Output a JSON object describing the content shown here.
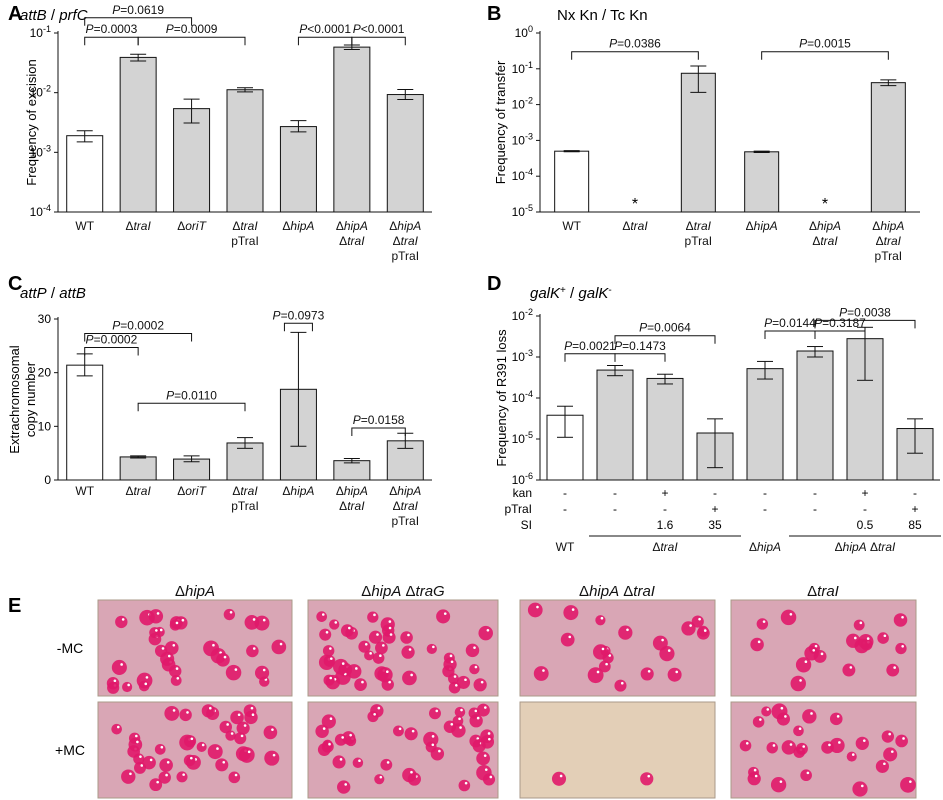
{
  "panels": [
    {
      "letter": "A",
      "title": [
        "attB",
        " / ",
        "prfC"
      ],
      "title_italic": [
        true,
        false,
        true
      ],
      "chart_data": {
        "type": "bar",
        "yscale": "log",
        "ylim": [
          0.0001,
          0.1
        ],
        "ylabel": "Frequency of excision",
        "yticks": [
          {
            "v": 0.1,
            "b": "10",
            "e": "-1"
          },
          {
            "v": 0.01,
            "b": "10",
            "e": "-2"
          },
          {
            "v": 0.001,
            "b": "10",
            "e": "-3"
          },
          {
            "v": 0.0001,
            "b": "10",
            "e": "-4"
          }
        ],
        "categories": [
          [
            [
              {
                "t": "WT",
                "i": false
              }
            ]
          ],
          [
            [
              {
                "t": "Δ",
                "i": false
              },
              {
                "t": "traI",
                "i": true
              }
            ]
          ],
          [
            [
              {
                "t": "Δ",
                "i": false
              },
              {
                "t": "oriT",
                "i": true
              }
            ]
          ],
          [
            [
              {
                "t": "Δ",
                "i": false
              },
              {
                "t": "traI",
                "i": true
              }
            ],
            [
              {
                "t": "pTraI",
                "i": false
              }
            ]
          ],
          [
            [
              {
                "t": "Δ",
                "i": false
              },
              {
                "t": "hipA",
                "i": true
              }
            ]
          ],
          [
            [
              {
                "t": "Δ",
                "i": false
              },
              {
                "t": "hipA",
                "i": true
              }
            ],
            [
              {
                "t": "Δ",
                "i": false
              },
              {
                "t": "traI",
                "i": true
              }
            ]
          ],
          [
            [
              {
                "t": "Δ",
                "i": false
              },
              {
                "t": "hipA",
                "i": true
              }
            ],
            [
              {
                "t": "Δ",
                "i": false
              },
              {
                "t": "traI",
                "i": true
              }
            ],
            [
              {
                "t": "pTraI",
                "i": false
              }
            ]
          ]
        ],
        "values": [
          0.0019,
          0.039,
          0.0054,
          0.0112,
          0.0027,
          0.058,
          0.0093
        ],
        "err_low": [
          0.0015,
          0.034,
          0.0031,
          0.0103,
          0.0022,
          0.053,
          0.0077
        ],
        "err_high": [
          0.0023,
          0.044,
          0.0078,
          0.0121,
          0.0034,
          0.063,
          0.0113
        ],
        "fills": [
          "#ffffff",
          "#d3d3d3",
          "#d3d3d3",
          "#d3d3d3",
          "#d3d3d3",
          "#d3d3d3",
          "#d3d3d3"
        ],
        "brackets": [
          {
            "from": 0,
            "to": 2,
            "value": 0.18,
            "p": "=0.0619"
          },
          {
            "from": 0,
            "to": 1,
            "value": 0.085,
            "p": "=0.0003"
          },
          {
            "from": 1,
            "to": 3,
            "value": 0.085,
            "p": "=0.0009"
          },
          {
            "from": 4,
            "to": 5,
            "value": 0.085,
            "p": "<0.0001"
          },
          {
            "from": 5,
            "to": 6,
            "value": 0.085,
            "p": "<0.0001"
          }
        ]
      }
    },
    {
      "letter": "B",
      "title": [
        "Nx Kn / Tc Kn"
      ],
      "title_italic": [
        false
      ],
      "chart_data": {
        "type": "bar",
        "yscale": "log",
        "ylim": [
          1e-05,
          1
        ],
        "ylabel": "Frequency of transfer",
        "yticks": [
          {
            "v": 1,
            "b": "10",
            "e": "0"
          },
          {
            "v": 0.1,
            "b": "10",
            "e": "-1"
          },
          {
            "v": 0.01,
            "b": "10",
            "e": "-2"
          },
          {
            "v": 0.001,
            "b": "10",
            "e": "-3"
          },
          {
            "v": 0.0001,
            "b": "10",
            "e": "-4"
          },
          {
            "v": 1e-05,
            "b": "10",
            "e": "-5"
          }
        ],
        "categories": [
          [
            [
              {
                "t": "WT",
                "i": false
              }
            ]
          ],
          [
            [
              {
                "t": "Δ",
                "i": false
              },
              {
                "t": "traI",
                "i": true
              }
            ]
          ],
          [
            [
              {
                "t": "Δ",
                "i": false
              },
              {
                "t": "traI",
                "i": true
              }
            ],
            [
              {
                "t": "pTraI",
                "i": false
              }
            ]
          ],
          [
            [
              {
                "t": "Δ",
                "i": false
              },
              {
                "t": "hipA",
                "i": true
              }
            ]
          ],
          [
            [
              {
                "t": "Δ",
                "i": false
              },
              {
                "t": "hipA",
                "i": true
              }
            ],
            [
              {
                "t": "Δ",
                "i": false
              },
              {
                "t": "traI",
                "i": true
              }
            ]
          ],
          [
            [
              {
                "t": "Δ",
                "i": false
              },
              {
                "t": "hipA",
                "i": true
              }
            ],
            [
              {
                "t": "Δ",
                "i": false
              },
              {
                "t": "traI",
                "i": true
              }
            ],
            [
              {
                "t": "pTraI",
                "i": false
              }
            ]
          ]
        ],
        "values": [
          0.0005,
          null,
          0.075,
          0.00048,
          null,
          0.041
        ],
        "err_low": [
          0.00048,
          null,
          0.022,
          0.00046,
          null,
          0.034
        ],
        "err_high": [
          0.00052,
          null,
          0.12,
          0.0005,
          null,
          0.049
        ],
        "fills": [
          "#ffffff",
          "#d3d3d3",
          "#d3d3d3",
          "#d3d3d3",
          "#d3d3d3",
          "#d3d3d3"
        ],
        "markers": [
          {
            "index": 1,
            "text": "*"
          },
          {
            "index": 4,
            "text": "*"
          }
        ],
        "brackets": [
          {
            "from": 0,
            "to": 2,
            "value": 0.3,
            "p": "=0.0386"
          },
          {
            "from": 3,
            "to": 5,
            "value": 0.3,
            "p": "=0.0015"
          }
        ]
      }
    },
    {
      "letter": "C",
      "title": [
        "attP",
        " / ",
        "attB"
      ],
      "title_italic": [
        true,
        false,
        true
      ],
      "chart_data": {
        "type": "bar",
        "yscale": "linear",
        "ylim": [
          0,
          30
        ],
        "ylabel": "Extrachromosomal copy number",
        "yticks": [
          {
            "v": 0,
            "t": "0"
          },
          {
            "v": 10,
            "t": "10"
          },
          {
            "v": 20,
            "t": "20"
          },
          {
            "v": 30,
            "t": "30"
          }
        ],
        "categories": [
          [
            [
              {
                "t": "WT",
                "i": false
              }
            ]
          ],
          [
            [
              {
                "t": "Δ",
                "i": false
              },
              {
                "t": "traI",
                "i": true
              }
            ]
          ],
          [
            [
              {
                "t": "Δ",
                "i": false
              },
              {
                "t": "oriT",
                "i": true
              }
            ]
          ],
          [
            [
              {
                "t": "Δ",
                "i": false
              },
              {
                "t": "traI",
                "i": true
              }
            ],
            [
              {
                "t": "pTraI",
                "i": false
              }
            ]
          ],
          [
            [
              {
                "t": "Δ",
                "i": false
              },
              {
                "t": "hipA",
                "i": true
              }
            ]
          ],
          [
            [
              {
                "t": "Δ",
                "i": false
              },
              {
                "t": "hipA",
                "i": true
              }
            ],
            [
              {
                "t": "Δ",
                "i": false
              },
              {
                "t": "traI",
                "i": true
              }
            ]
          ],
          [
            [
              {
                "t": "Δ",
                "i": false
              },
              {
                "t": "hipA",
                "i": true
              }
            ],
            [
              {
                "t": "Δ",
                "i": false
              },
              {
                "t": "traI",
                "i": true
              }
            ],
            [
              {
                "t": "pTraI",
                "i": false
              }
            ]
          ]
        ],
        "values": [
          21.4,
          4.3,
          3.9,
          6.9,
          16.9,
          3.6,
          7.3
        ],
        "err_low": [
          19.4,
          4.1,
          3.4,
          5.9,
          6.3,
          3.2,
          5.9
        ],
        "err_high": [
          23.5,
          4.5,
          4.5,
          7.9,
          27.5,
          4.0,
          8.7
        ],
        "fills": [
          "#ffffff",
          "#d3d3d3",
          "#d3d3d3",
          "#d3d3d3",
          "#d3d3d3",
          "#d3d3d3",
          "#d3d3d3"
        ],
        "brackets": [
          {
            "from": 0,
            "to": 2,
            "value": 27.3,
            "p": "=0.0002"
          },
          {
            "from": 0,
            "to": 1,
            "value": 24.7,
            "p": "=0.0002"
          },
          {
            "from": 1,
            "to": 3,
            "value": 14.3,
            "p": "=0.0110"
          },
          {
            "from": 4,
            "to": 4,
            "value": 29.2,
            "p": "=0.0973"
          },
          {
            "from": 5,
            "to": 6,
            "value": 9.7,
            "p": "=0.0158"
          }
        ]
      }
    },
    {
      "letter": "D",
      "title": [
        "galK",
        "+",
        " / ",
        "galK",
        "-"
      ],
      "title_italic": [
        true,
        false,
        false,
        true,
        false
      ],
      "title_sup": [
        false,
        true,
        false,
        false,
        true
      ],
      "chart_data": {
        "type": "bar",
        "yscale": "log",
        "ylim": [
          1e-06,
          0.01
        ],
        "ylabel": "Frequency of R391 loss",
        "yticks": [
          {
            "v": 0.01,
            "b": "10",
            "e": "-2"
          },
          {
            "v": 0.001,
            "b": "10",
            "e": "-3"
          },
          {
            "v": 0.0001,
            "b": "10",
            "e": "-4"
          },
          {
            "v": 1e-05,
            "b": "10",
            "e": "-5"
          },
          {
            "v": 1e-06,
            "b": "10",
            "e": "-6"
          }
        ],
        "values": [
          3.8e-05,
          0.00048,
          0.0003,
          1.4e-05,
          0.00052,
          0.0014,
          0.0028,
          1.8e-05
        ],
        "err_low": [
          1.1e-05,
          0.00035,
          0.00022,
          2e-06,
          0.00029,
          0.001,
          0.00027,
          4.5e-06
        ],
        "err_high": [
          6.3e-05,
          0.00062,
          0.00038,
          3.1e-05,
          0.00078,
          0.0018,
          0.0053,
          3.1e-05
        ],
        "fills": [
          "#ffffff",
          "#d3d3d3",
          "#d3d3d3",
          "#d3d3d3",
          "#d3d3d3",
          "#d3d3d3",
          "#d3d3d3",
          "#d3d3d3"
        ],
        "table_rows": [
          {
            "label": "kan",
            "cells": [
              "-",
              "-",
              "+",
              "-",
              "-",
              "-",
              "+",
              "-"
            ]
          },
          {
            "label": "pTraI",
            "cells": [
              "-",
              "-",
              "-",
              "+",
              "-",
              "-",
              "-",
              "+"
            ]
          },
          {
            "label": "SI",
            "cells": [
              "",
              "",
              "1.6",
              "35",
              "",
              "",
              "0.5",
              "85"
            ]
          }
        ],
        "groups": [
          {
            "from": 0,
            "to": 0,
            "label": [
              {
                "t": "WT",
                "i": false
              }
            ],
            "line": false
          },
          {
            "from": 1,
            "to": 3,
            "label": [
              {
                "t": "Δ",
                "i": false
              },
              {
                "t": "traI",
                "i": true
              }
            ],
            "line": true
          },
          {
            "from": 4,
            "to": 4,
            "label": [
              {
                "t": "Δ",
                "i": false
              },
              {
                "t": "hipA",
                "i": true
              }
            ],
            "line": false
          },
          {
            "from": 5,
            "to": 7,
            "label": [
              {
                "t": "Δ",
                "i": false
              },
              {
                "t": "hipA",
                "i": true
              },
              {
                "t": " Δ",
                "i": false
              },
              {
                "t": "traI",
                "i": true
              }
            ],
            "line": true
          }
        ],
        "brackets": [
          {
            "from": 5,
            "to": 7,
            "value": 0.0078,
            "p": "=0.0038"
          },
          {
            "from": 1,
            "to": 3,
            "value": 0.0033,
            "p": "=0.0064"
          },
          {
            "from": 4,
            "to": 5,
            "value": 0.0043,
            "p": "=0.0144"
          },
          {
            "from": 5,
            "to": 6,
            "value": 0.0043,
            "p": "=0.3187"
          },
          {
            "from": 0,
            "to": 1,
            "value": 0.0012,
            "p": "=0.0021"
          },
          {
            "from": 1,
            "to": 2,
            "value": 0.0012,
            "p": "=0.1473"
          }
        ]
      }
    }
  ],
  "panel_e": {
    "letter": "E",
    "columns": [
      [
        {
          "t": "Δ",
          "i": false
        },
        {
          "t": "hipA",
          "i": true
        }
      ],
      [
        {
          "t": "Δ",
          "i": false
        },
        {
          "t": "hipA",
          "i": true
        },
        {
          "t": " Δ",
          "i": false
        },
        {
          "t": "traG",
          "i": true
        }
      ],
      [
        {
          "t": "Δ",
          "i": false
        },
        {
          "t": "hipA",
          "i": true
        },
        {
          "t": " Δ",
          "i": false
        },
        {
          "t": "traI",
          "i": true
        }
      ],
      [
        {
          "t": "Δ",
          "i": false
        },
        {
          "t": "traI",
          "i": true
        }
      ]
    ],
    "rows": [
      "-MC",
      "+MC"
    ],
    "plate_colors": {
      "pink_bg": "#d9a6b5",
      "pale_bg": "#e3cfb7",
      "colony": "#e0196a"
    },
    "plates": [
      [
        {
          "bg": "pink",
          "n": 32
        },
        {
          "bg": "pink",
          "n": 42
        },
        {
          "bg": "pink",
          "n": 20
        },
        {
          "bg": "pink",
          "n": 18
        }
      ],
      [
        {
          "bg": "pink",
          "n": 36
        },
        {
          "bg": "pink",
          "n": 38
        },
        {
          "bg": "pale",
          "n": 2
        },
        {
          "bg": "pink",
          "n": 26
        }
      ]
    ]
  }
}
